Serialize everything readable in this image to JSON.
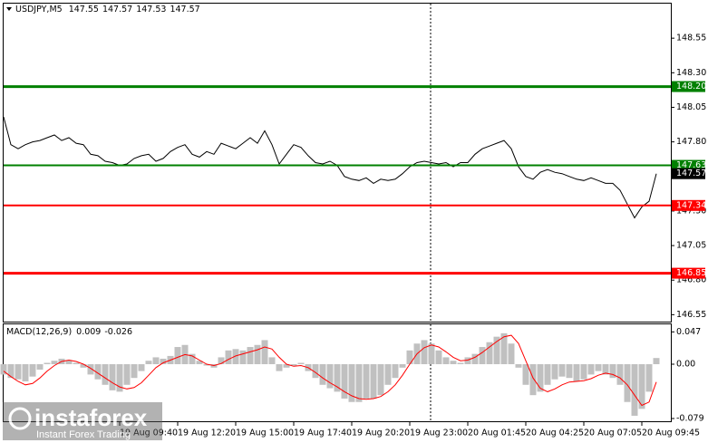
{
  "chart_data": [
    {
      "type": "line",
      "title": "USDJPY,M5",
      "ohlc": [
        147.55,
        147.57,
        147.53,
        147.57
      ],
      "xlim": [
        0,
        92
      ],
      "ylim": [
        146.5,
        148.8
      ],
      "yticks": [
        148.55,
        {
          "value": 148.3,
          "label": "148.30"
        },
        148.05,
        {
          "value": 147.8,
          "label": "147.80"
        },
        {
          "value": 147.3,
          "label": "147.30"
        },
        147.05,
        {
          "value": 146.8,
          "label": "146.80"
        },
        146.55
      ],
      "series": [
        {
          "color": "#000000",
          "values": [
            147.98,
            147.78,
            147.75,
            147.78,
            147.8,
            147.81,
            147.83,
            147.85,
            147.81,
            147.83,
            147.79,
            147.78,
            147.71,
            147.7,
            147.66,
            147.65,
            147.63,
            147.64,
            147.68,
            147.7,
            147.71,
            147.66,
            147.68,
            147.73,
            147.76,
            147.78,
            147.71,
            147.69,
            147.73,
            147.71,
            147.79,
            147.77,
            147.75,
            147.79,
            147.83,
            147.79,
            147.88,
            147.78,
            147.64,
            147.71,
            147.78,
            147.76,
            147.7,
            147.65,
            147.64,
            147.66,
            147.63,
            147.55,
            147.53,
            147.52,
            147.54,
            147.5,
            147.53,
            147.52,
            147.53,
            147.57,
            147.62,
            147.65,
            147.66,
            147.65,
            147.64,
            147.65,
            147.62,
            147.65,
            147.65,
            147.71,
            147.75,
            147.77,
            147.79,
            147.81,
            147.75,
            147.62,
            147.55,
            147.53,
            147.58,
            147.6,
            147.58,
            147.57,
            147.55,
            147.53,
            147.52,
            147.54,
            147.52,
            147.5,
            147.5,
            147.45,
            147.35,
            147.25,
            147.33,
            147.37,
            147.57
          ]
        }
      ],
      "levels": [
        {
          "value": 148.2,
          "label": "148.20",
          "color": "#008000",
          "line_width": 3
        },
        {
          "value": 147.63,
          "label": "147.63",
          "color": "#008000",
          "line_width": 2
        },
        {
          "value": 147.34,
          "label": "147.34",
          "color": "#ff0000",
          "line_width": 2
        },
        {
          "value": 146.85,
          "label": "146.85",
          "color": "#ff0000",
          "line_width": 3
        }
      ],
      "price_marker": 147.57
    },
    {
      "type": "bar",
      "title": "MACD(12,26,9)",
      "indicator_values": [
        0.009,
        -0.026
      ],
      "xlim": [
        0,
        92
      ],
      "ylim": [
        -0.083,
        0.058
      ],
      "yticks": [
        0.047,
        {
          "value": 0,
          "label": "0.00"
        },
        -0.079
      ],
      "xticks": [
        {
          "value": 16,
          "label": "19 Aug 09:40"
        },
        {
          "value": 24,
          "label": "19 Aug 12:20"
        },
        {
          "value": 32,
          "label": "19 Aug 15:00"
        },
        {
          "value": 40,
          "label": "19 Aug 17:40"
        },
        {
          "value": 48,
          "label": "19 Aug 20:20"
        },
        {
          "value": 56,
          "label": "19 Aug 23:00"
        },
        {
          "value": 64,
          "label": "20 Aug 01:45"
        },
        {
          "value": 72,
          "label": "20 Aug 04:25"
        },
        {
          "value": 80,
          "label": "20 Aug 07:05"
        },
        {
          "value": 88,
          "label": "20 Aug 09:45"
        }
      ],
      "series": [
        {
          "type": "bar",
          "color": "#c0c0c0",
          "values": [
            -0.015,
            -0.02,
            -0.022,
            -0.025,
            -0.018,
            -0.008,
            0.002,
            0.005,
            0.008,
            0.006,
            0.002,
            -0.005,
            -0.015,
            -0.022,
            -0.03,
            -0.038,
            -0.04,
            -0.03,
            -0.02,
            -0.01,
            0.005,
            0.01,
            0.008,
            0.012,
            0.025,
            0.028,
            0.015,
            0.005,
            -0.002,
            -0.005,
            0.01,
            0.02,
            0.022,
            0.02,
            0.025,
            0.028,
            0.035,
            0.01,
            -0.01,
            -0.005,
            -0.002,
            0.002,
            -0.01,
            -0.02,
            -0.03,
            -0.035,
            -0.04,
            -0.05,
            -0.055,
            -0.055,
            -0.05,
            -0.05,
            -0.045,
            -0.03,
            -0.02,
            -0.005,
            0.02,
            0.03,
            0.035,
            0.03,
            0.02,
            0.01,
            0.005,
            0.002,
            0.01,
            0.015,
            0.025,
            0.032,
            0.04,
            0.045,
            0.03,
            -0.005,
            -0.03,
            -0.045,
            -0.04,
            -0.03,
            -0.022,
            -0.018,
            -0.02,
            -0.025,
            -0.022,
            -0.015,
            -0.01,
            -0.015,
            -0.02,
            -0.03,
            -0.055,
            -0.075,
            -0.065,
            -0.04,
            0.009
          ]
        },
        {
          "type": "line",
          "color": "#ff0000",
          "values": [
            -0.01,
            -0.018,
            -0.025,
            -0.03,
            -0.028,
            -0.02,
            -0.01,
            -0.002,
            0.004,
            0.006,
            0.004,
            0.0,
            -0.006,
            -0.013,
            -0.02,
            -0.027,
            -0.033,
            -0.036,
            -0.034,
            -0.027,
            -0.016,
            -0.005,
            0.002,
            0.006,
            0.01,
            0.014,
            0.012,
            0.006,
            0.0,
            -0.002,
            0.001,
            0.007,
            0.012,
            0.015,
            0.018,
            0.021,
            0.025,
            0.022,
            0.01,
            0.0,
            -0.003,
            -0.002,
            -0.005,
            -0.012,
            -0.02,
            -0.027,
            -0.033,
            -0.04,
            -0.046,
            -0.05,
            -0.051,
            -0.05,
            -0.047,
            -0.04,
            -0.03,
            -0.016,
            0.0,
            0.015,
            0.024,
            0.028,
            0.025,
            0.018,
            0.01,
            0.005,
            0.006,
            0.01,
            0.017,
            0.025,
            0.033,
            0.04,
            0.042,
            0.03,
            0.005,
            -0.02,
            -0.035,
            -0.04,
            -0.036,
            -0.03,
            -0.026,
            -0.025,
            -0.024,
            -0.021,
            -0.016,
            -0.013,
            -0.015,
            -0.02,
            -0.03,
            -0.045,
            -0.06,
            -0.055,
            -0.026
          ]
        }
      ]
    }
  ],
  "watermark": {
    "name": "instaforex",
    "tagline": "Instant Forex Trading"
  }
}
